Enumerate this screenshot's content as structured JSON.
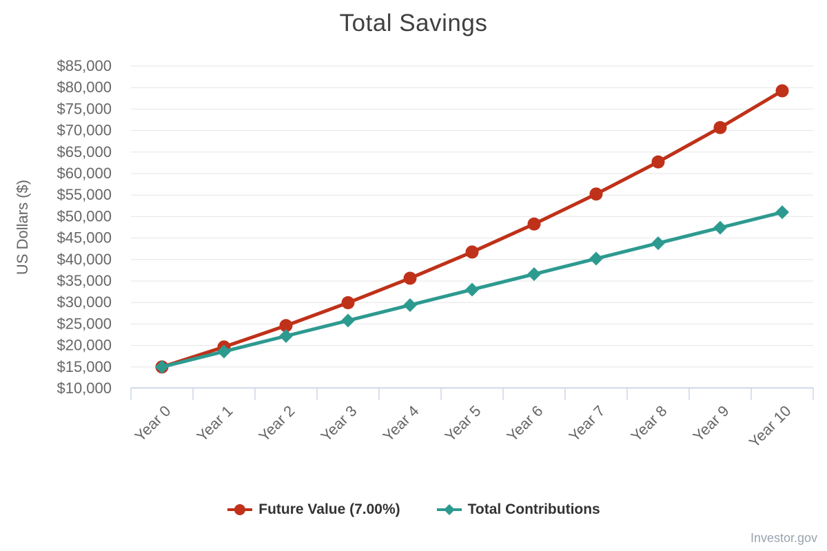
{
  "chart_data": {
    "type": "line",
    "title": "Total Savings",
    "ylabel": "US Dollars ($)",
    "xlabel": "",
    "categories": [
      "Year 0",
      "Year 1",
      "Year 2",
      "Year 3",
      "Year 4",
      "Year 5",
      "Year 6",
      "Year 7",
      "Year 8",
      "Year 9",
      "Year 10"
    ],
    "ylim": [
      10000,
      85000
    ],
    "ytick_step": 5000,
    "ytick_labels": [
      "$10,000",
      "$15,000",
      "$20,000",
      "$25,000",
      "$30,000",
      "$35,000",
      "$40,000",
      "$45,000",
      "$50,000",
      "$55,000",
      "$60,000",
      "$65,000",
      "$70,000",
      "$75,000",
      "$80,000",
      "$85,000"
    ],
    "grid": true,
    "legend_position": "bottom",
    "series": [
      {
        "name": "Future Value (7.00%)",
        "color": "#bf3119",
        "marker": "circle",
        "values": [
          15000,
          19650,
          24626,
          29949,
          35646,
          41741,
          48263,
          55241,
          62708,
          70698,
          79246
        ]
      },
      {
        "name": "Total Contributions",
        "color": "#2d9a90",
        "marker": "diamond",
        "values": [
          15000,
          18600,
          22200,
          25800,
          29400,
          33000,
          36600,
          40200,
          43800,
          47400,
          51000
        ]
      }
    ],
    "watermark": "Investor.gov",
    "colors": {
      "background": "#ffffff",
      "grid": "#e6e6e6",
      "axis_line": "#ccd6eb",
      "tick_label": "#666666",
      "axis_title": "#666666",
      "title": "#404040",
      "legend_text": "#333333",
      "watermark": "#9aa3ae"
    }
  }
}
